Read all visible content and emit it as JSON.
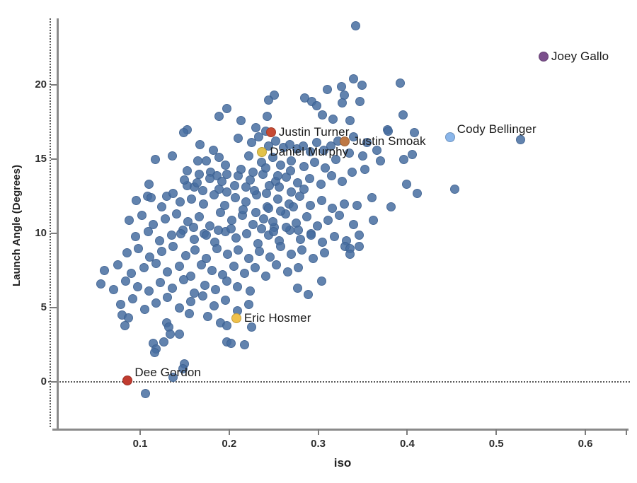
{
  "chart_data": {
    "type": "scatter",
    "title": "",
    "xlabel": "iso",
    "ylabel": "Launch Angle (Degrees)",
    "x_ticks": [
      0.1,
      0.2,
      0.3,
      0.4,
      0.5,
      0.6
    ],
    "y_ticks": [
      0,
      5,
      10,
      15,
      20
    ],
    "xlim": [
      0.006,
      0.645
    ],
    "ylim": [
      -3.2,
      24.6
    ],
    "grid": false,
    "reference_lines": {
      "horizontal_at_y": 0,
      "vertical_at_left_edge": true,
      "style": "dotted"
    },
    "default_point_color": "#466da0",
    "background_color": "#ffffff",
    "labeled_players": [
      {
        "name": "Joey Gallo",
        "iso": 0.553,
        "launch_angle": 21.9,
        "color": "#7b4f8c",
        "label_position": "right"
      },
      {
        "name": "Cody Bellinger",
        "iso": 0.448,
        "launch_angle": 16.5,
        "color": "#8ab6ea",
        "label_position": "above-right"
      },
      {
        "name": "Justin Turner",
        "iso": 0.247,
        "launch_angle": 16.8,
        "color": "#c74a33",
        "label_position": "right"
      },
      {
        "name": "Justin Smoak",
        "iso": 0.33,
        "launch_angle": 16.2,
        "color": "#be7844",
        "label_position": "right"
      },
      {
        "name": "Daniel Murphy",
        "iso": 0.237,
        "launch_angle": 15.5,
        "color": "#e2c24a",
        "label_position": "right"
      },
      {
        "name": "Eric Hosmer",
        "iso": 0.208,
        "launch_angle": 4.3,
        "color": "#f0c14b",
        "label_position": "right"
      },
      {
        "name": "Dee Gordon",
        "iso": 0.086,
        "launch_angle": 0.1,
        "color": "#c13b2f",
        "label_position": "above-right"
      }
    ],
    "points": [
      [
        0.342,
        24.0
      ],
      [
        0.34,
        20.4
      ],
      [
        0.349,
        20.0
      ],
      [
        0.392,
        20.1
      ],
      [
        0.326,
        19.9
      ],
      [
        0.31,
        19.7
      ],
      [
        0.285,
        19.1
      ],
      [
        0.293,
        18.9
      ],
      [
        0.298,
        18.6
      ],
      [
        0.329,
        19.3
      ],
      [
        0.327,
        18.8
      ],
      [
        0.347,
        18.9
      ],
      [
        0.251,
        19.3
      ],
      [
        0.244,
        19.0
      ],
      [
        0.197,
        18.4
      ],
      [
        0.189,
        17.9
      ],
      [
        0.243,
        17.9
      ],
      [
        0.213,
        17.6
      ],
      [
        0.23,
        17.1
      ],
      [
        0.241,
        16.9
      ],
      [
        0.153,
        17.0
      ],
      [
        0.305,
        18.0
      ],
      [
        0.317,
        17.7
      ],
      [
        0.336,
        17.6
      ],
      [
        0.378,
        17.0
      ],
      [
        0.395,
        18.0
      ],
      [
        0.379,
        16.9
      ],
      [
        0.408,
        16.8
      ],
      [
        0.527,
        16.3
      ],
      [
        0.21,
        16.4
      ],
      [
        0.225,
        16.1
      ],
      [
        0.233,
        16.5
      ],
      [
        0.244,
        15.9
      ],
      [
        0.252,
        16.2
      ],
      [
        0.261,
        15.8
      ],
      [
        0.268,
        16.0
      ],
      [
        0.276,
        15.7
      ],
      [
        0.283,
        15.9
      ],
      [
        0.291,
        15.5
      ],
      [
        0.298,
        16.1
      ],
      [
        0.306,
        15.6
      ],
      [
        0.314,
        15.9
      ],
      [
        0.322,
        16.2
      ],
      [
        0.335,
        15.4
      ],
      [
        0.35,
        15.2
      ],
      [
        0.366,
        15.6
      ],
      [
        0.34,
        16.5
      ],
      [
        0.355,
        16.1
      ],
      [
        0.117,
        15.0
      ],
      [
        0.136,
        15.2
      ],
      [
        0.165,
        14.9
      ],
      [
        0.174,
        14.9
      ],
      [
        0.189,
        15.1
      ],
      [
        0.196,
        14.6
      ],
      [
        0.182,
        15.6
      ],
      [
        0.167,
        16.0
      ],
      [
        0.149,
        16.8
      ],
      [
        0.222,
        15.2
      ],
      [
        0.236,
        14.8
      ],
      [
        0.249,
        15.1
      ],
      [
        0.258,
        14.6
      ],
      [
        0.27,
        14.9
      ],
      [
        0.284,
        14.5
      ],
      [
        0.296,
        14.8
      ],
      [
        0.308,
        14.4
      ],
      [
        0.32,
        15.0
      ],
      [
        0.352,
        14.3
      ],
      [
        0.338,
        14.1
      ],
      [
        0.37,
        14.9
      ],
      [
        0.396,
        15.0
      ],
      [
        0.406,
        15.3
      ],
      [
        0.153,
        14.2
      ],
      [
        0.166,
        14.0
      ],
      [
        0.179,
        14.1
      ],
      [
        0.186,
        13.9
      ],
      [
        0.197,
        14.0
      ],
      [
        0.11,
        13.3
      ],
      [
        0.153,
        13.2
      ],
      [
        0.161,
        13.1
      ],
      [
        0.17,
        12.9
      ],
      [
        0.189,
        13.0
      ],
      [
        0.197,
        12.8
      ],
      [
        0.21,
        13.9
      ],
      [
        0.224,
        13.6
      ],
      [
        0.238,
        14.0
      ],
      [
        0.252,
        13.5
      ],
      [
        0.264,
        13.8
      ],
      [
        0.277,
        13.4
      ],
      [
        0.29,
        13.7
      ],
      [
        0.303,
        13.3
      ],
      [
        0.315,
        13.9
      ],
      [
        0.327,
        13.5
      ],
      [
        0.399,
        13.3
      ],
      [
        0.411,
        12.7
      ],
      [
        0.453,
        13.0
      ],
      [
        0.213,
        14.3
      ],
      [
        0.227,
        14.1
      ],
      [
        0.241,
        14.4
      ],
      [
        0.255,
        13.9
      ],
      [
        0.269,
        14.2
      ],
      [
        0.245,
        13.2
      ],
      [
        0.219,
        13.1
      ],
      [
        0.206,
        13.2
      ],
      [
        0.192,
        13.5
      ],
      [
        0.178,
        13.7
      ],
      [
        0.164,
        13.4
      ],
      [
        0.15,
        13.6
      ],
      [
        0.096,
        12.2
      ],
      [
        0.108,
        12.5
      ],
      [
        0.112,
        12.4
      ],
      [
        0.13,
        12.5
      ],
      [
        0.137,
        12.7
      ],
      [
        0.124,
        11.8
      ],
      [
        0.145,
        12.1
      ],
      [
        0.158,
        12.3
      ],
      [
        0.171,
        12.0
      ],
      [
        0.183,
        12.6
      ],
      [
        0.195,
        11.9
      ],
      [
        0.207,
        12.4
      ],
      [
        0.219,
        12.1
      ],
      [
        0.231,
        12.6
      ],
      [
        0.243,
        11.8
      ],
      [
        0.255,
        12.3
      ],
      [
        0.267,
        12.0
      ],
      [
        0.279,
        12.5
      ],
      [
        0.291,
        11.9
      ],
      [
        0.304,
        12.2
      ],
      [
        0.316,
        11.7
      ],
      [
        0.329,
        12.0
      ],
      [
        0.382,
        11.8
      ],
      [
        0.344,
        11.9
      ],
      [
        0.36,
        12.4
      ],
      [
        0.228,
        12.9
      ],
      [
        0.242,
        12.7
      ],
      [
        0.256,
        13.1
      ],
      [
        0.27,
        12.8
      ],
      [
        0.284,
        13.0
      ],
      [
        0.088,
        10.9
      ],
      [
        0.102,
        11.2
      ],
      [
        0.115,
        10.6
      ],
      [
        0.128,
        11.0
      ],
      [
        0.141,
        11.3
      ],
      [
        0.154,
        10.8
      ],
      [
        0.166,
        11.1
      ],
      [
        0.178,
        10.5
      ],
      [
        0.19,
        11.4
      ],
      [
        0.203,
        10.9
      ],
      [
        0.215,
        11.2
      ],
      [
        0.227,
        10.6
      ],
      [
        0.239,
        11.0
      ],
      [
        0.251,
        10.4
      ],
      [
        0.263,
        11.3
      ],
      [
        0.275,
        10.7
      ],
      [
        0.287,
        11.1
      ],
      [
        0.299,
        10.5
      ],
      [
        0.311,
        10.9
      ],
      [
        0.324,
        11.2
      ],
      [
        0.362,
        10.9
      ],
      [
        0.34,
        10.6
      ],
      [
        0.249,
        10.8
      ],
      [
        0.216,
        11.6
      ],
      [
        0.23,
        11.4
      ],
      [
        0.244,
        11.7
      ],
      [
        0.258,
        11.5
      ],
      [
        0.272,
        11.8
      ],
      [
        0.095,
        9.8
      ],
      [
        0.109,
        10.1
      ],
      [
        0.122,
        9.5
      ],
      [
        0.135,
        9.9
      ],
      [
        0.148,
        10.2
      ],
      [
        0.161,
        9.6
      ],
      [
        0.172,
        10.0
      ],
      [
        0.184,
        9.4
      ],
      [
        0.196,
        10.1
      ],
      [
        0.208,
        9.7
      ],
      [
        0.22,
        10.0
      ],
      [
        0.232,
        9.3
      ],
      [
        0.244,
        9.9
      ],
      [
        0.256,
        9.5
      ],
      [
        0.268,
        10.2
      ],
      [
        0.28,
        9.6
      ],
      [
        0.292,
        10.0
      ],
      [
        0.305,
        9.4
      ],
      [
        0.318,
        9.8
      ],
      [
        0.332,
        9.5
      ],
      [
        0.346,
        9.9
      ],
      [
        0.236,
        10.3
      ],
      [
        0.25,
        10.1
      ],
      [
        0.264,
        10.4
      ],
      [
        0.278,
        10.2
      ],
      [
        0.202,
        10.3
      ],
      [
        0.188,
        10.2
      ],
      [
        0.174,
        9.9
      ],
      [
        0.16,
        10.4
      ],
      [
        0.146,
        10.0
      ],
      [
        0.33,
        9.1
      ],
      [
        0.336,
        9.0
      ],
      [
        0.346,
        9.1
      ],
      [
        0.336,
        8.6
      ],
      [
        0.085,
        8.7
      ],
      [
        0.098,
        9.0
      ],
      [
        0.111,
        8.4
      ],
      [
        0.124,
        8.8
      ],
      [
        0.137,
        9.1
      ],
      [
        0.151,
        8.5
      ],
      [
        0.162,
        8.9
      ],
      [
        0.174,
        8.3
      ],
      [
        0.186,
        9.0
      ],
      [
        0.198,
        8.6
      ],
      [
        0.21,
        8.9
      ],
      [
        0.222,
        8.3
      ],
      [
        0.234,
        8.8
      ],
      [
        0.246,
        8.4
      ],
      [
        0.258,
        9.1
      ],
      [
        0.27,
        8.6
      ],
      [
        0.282,
        8.9
      ],
      [
        0.294,
        8.3
      ],
      [
        0.307,
        8.7
      ],
      [
        0.292,
        9.9
      ],
      [
        0.06,
        7.5
      ],
      [
        0.075,
        7.9
      ],
      [
        0.09,
        7.3
      ],
      [
        0.104,
        7.7
      ],
      [
        0.118,
        8.0
      ],
      [
        0.131,
        7.4
      ],
      [
        0.144,
        7.8
      ],
      [
        0.157,
        7.1
      ],
      [
        0.169,
        7.9
      ],
      [
        0.181,
        7.5
      ],
      [
        0.193,
        7.2
      ],
      [
        0.205,
        7.8
      ],
      [
        0.217,
        7.3
      ],
      [
        0.229,
        7.7
      ],
      [
        0.241,
        7.1
      ],
      [
        0.253,
        7.9
      ],
      [
        0.266,
        7.4
      ],
      [
        0.278,
        7.7
      ],
      [
        0.304,
        6.8
      ],
      [
        0.056,
        6.6
      ],
      [
        0.07,
        6.2
      ],
      [
        0.084,
        6.8
      ],
      [
        0.097,
        6.4
      ],
      [
        0.11,
        6.1
      ],
      [
        0.123,
        6.7
      ],
      [
        0.136,
        6.3
      ],
      [
        0.149,
        6.9
      ],
      [
        0.161,
        6.0
      ],
      [
        0.173,
        6.5
      ],
      [
        0.185,
        6.2
      ],
      [
        0.197,
        6.8
      ],
      [
        0.209,
        6.4
      ],
      [
        0.277,
        6.3
      ],
      [
        0.289,
        5.9
      ],
      [
        0.224,
        6.1
      ],
      [
        0.078,
        5.2
      ],
      [
        0.092,
        5.6
      ],
      [
        0.105,
        4.9
      ],
      [
        0.118,
        5.3
      ],
      [
        0.131,
        5.7
      ],
      [
        0.144,
        5.0
      ],
      [
        0.157,
        5.4
      ],
      [
        0.17,
        5.8
      ],
      [
        0.183,
        5.1
      ],
      [
        0.196,
        5.5
      ],
      [
        0.209,
        4.8
      ],
      [
        0.222,
        5.2
      ],
      [
        0.08,
        4.5
      ],
      [
        0.087,
        4.3
      ],
      [
        0.083,
        3.8
      ],
      [
        0.13,
        4.0
      ],
      [
        0.132,
        3.7
      ],
      [
        0.144,
        3.2
      ],
      [
        0.134,
        3.2
      ],
      [
        0.19,
        4.0
      ],
      [
        0.197,
        3.8
      ],
      [
        0.225,
        3.7
      ],
      [
        0.155,
        4.6
      ],
      [
        0.176,
        4.4
      ],
      [
        0.115,
        2.6
      ],
      [
        0.118,
        2.2
      ],
      [
        0.116,
        2.0
      ],
      [
        0.127,
        2.7
      ],
      [
        0.197,
        2.7
      ],
      [
        0.202,
        2.6
      ],
      [
        0.217,
        2.5
      ],
      [
        0.106,
        -0.8
      ],
      [
        0.137,
        0.3
      ],
      [
        0.15,
        1.2
      ],
      [
        0.148,
        0.9
      ]
    ]
  }
}
